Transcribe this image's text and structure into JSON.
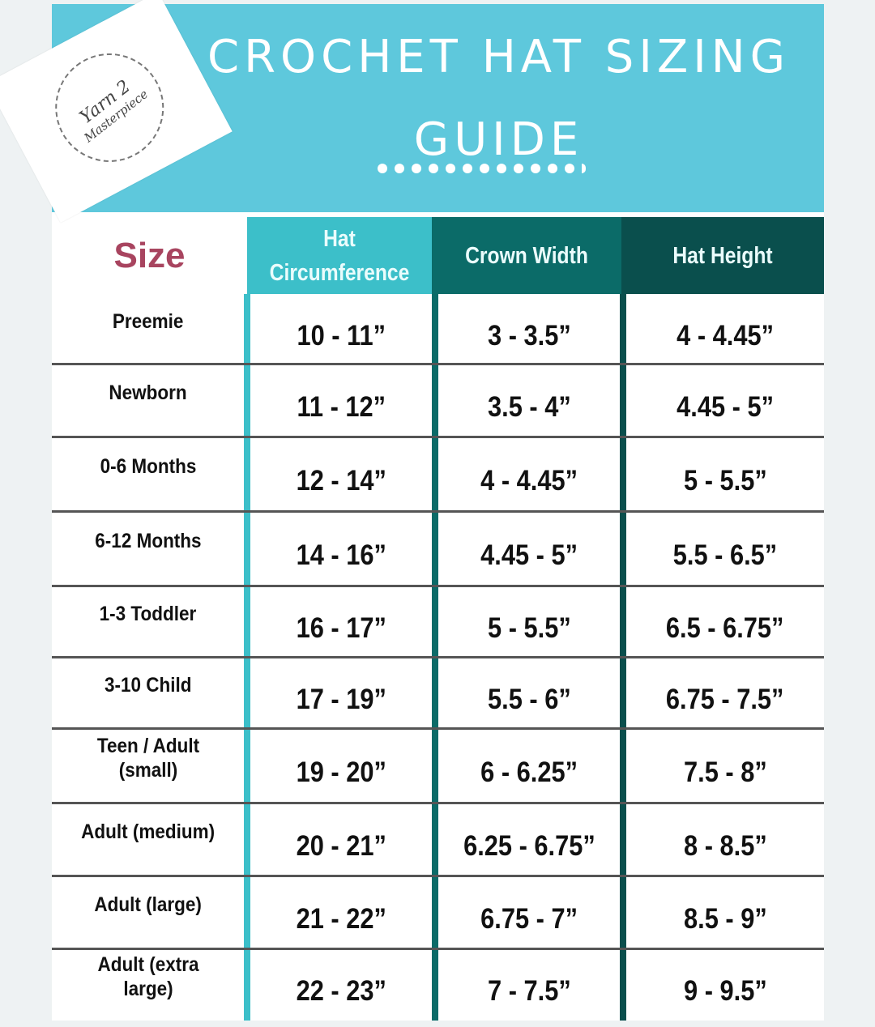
{
  "title_line1": "CROCHET HAT SIZING",
  "title_line2": "GUIDE",
  "logo": {
    "text1": "Yarn 2",
    "text2": "Masterpiece"
  },
  "colors": {
    "banner": "#5ec8dc",
    "circumference": "#3cbfc9",
    "crown": "#0b6b68",
    "height": "#0a4f4d",
    "size_label": "#a8445f"
  },
  "headers": {
    "size": "Size",
    "circumference": "Hat Circumference",
    "crown": "Crown Width",
    "height": "Hat Height"
  },
  "rows": [
    {
      "size": "Preemie",
      "circumference": "10 - 11”",
      "crown": "3 - 3.5”",
      "height": "4 - 4.45”"
    },
    {
      "size": "Newborn",
      "circumference": "11 - 12”",
      "crown": "3.5 - 4”",
      "height": "4.45 - 5”"
    },
    {
      "size": "0-6 Months",
      "circumference": "12 - 14”",
      "crown": "4 - 4.45”",
      "height": "5 - 5.5”"
    },
    {
      "size": "6-12 Months",
      "circumference": "14 - 16”",
      "crown": "4.45 - 5”",
      "height": "5.5 - 6.5”"
    },
    {
      "size": "1-3 Toddler",
      "circumference": "16 - 17”",
      "crown": "5 - 5.5”",
      "height": "6.5 - 6.75”"
    },
    {
      "size": "3-10 Child",
      "circumference": "17 - 19”",
      "crown": "5.5 - 6”",
      "height": "6.75 - 7.5”"
    },
    {
      "size": "Teen / Adult (small)",
      "circumference": "19 - 20”",
      "crown": "6 - 6.25”",
      "height": "7.5 - 8”"
    },
    {
      "size": "Adult (medium)",
      "circumference": "20 - 21”",
      "crown": "6.25 - 6.75”",
      "height": "8 - 8.5”"
    },
    {
      "size": "Adult (large)",
      "circumference": "21 - 22”",
      "crown": "6.75 - 7”",
      "height": "8.5 - 9”"
    },
    {
      "size": "Adult (extra large)",
      "circumference": "22 - 23”",
      "crown": "7 - 7.5”",
      "height": "9 - 9.5”"
    }
  ]
}
